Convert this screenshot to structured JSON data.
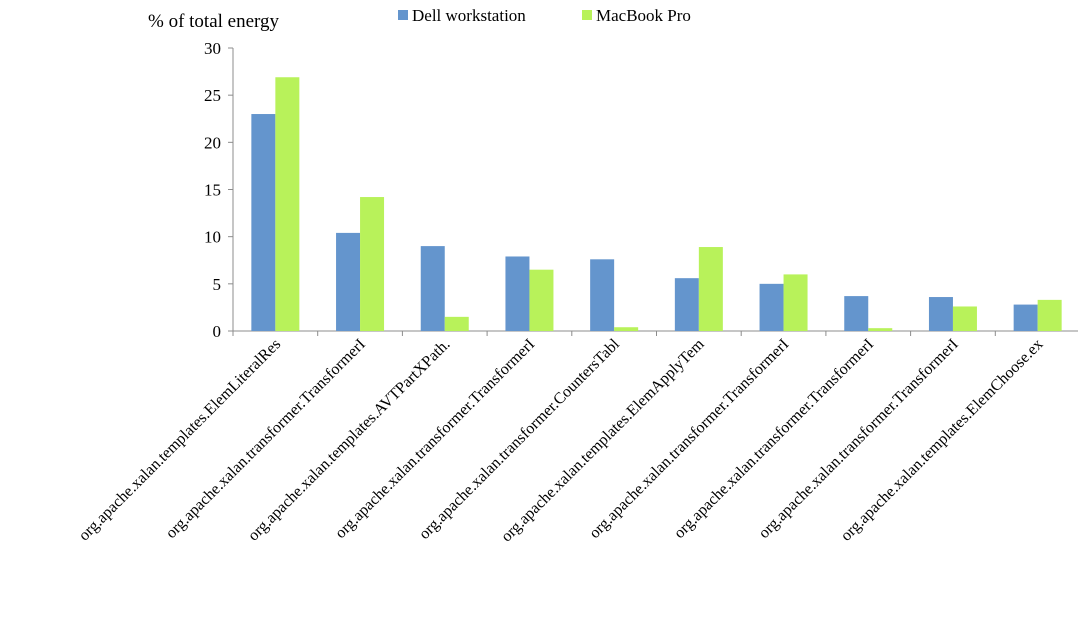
{
  "chart_data": {
    "type": "bar",
    "ylabel": "% of total energy",
    "ylim": [
      0,
      30
    ],
    "yticks": [
      0,
      5,
      10,
      15,
      20,
      25,
      30
    ],
    "grid": false,
    "legend_position": "top",
    "categories": [
      "org.apache.xalan.templates.ElemLiteralRes",
      "org.apache.xalan.transformer.TransformerI",
      "org.apache.xalan.templates.AVTPartXPath.",
      "org.apache.xalan.transformer.TransformerI",
      "org.apache.xalan.transformer.CountersTabl",
      "org.apache.xalan.templates.ElemApplyTem",
      "org.apache.xalan.transformer.TransformerI",
      "org.apache.xalan.transformer.TransformerI",
      "org.apache.xalan.transformer.TransformerI",
      "org.apache.xalan.templates.ElemChoose.ex"
    ],
    "series": [
      {
        "name": "Dell workstation",
        "color": "#6495cd",
        "values": [
          23.0,
          10.4,
          9.0,
          7.9,
          7.6,
          5.6,
          5.0,
          3.7,
          3.6,
          2.8
        ]
      },
      {
        "name": "MacBook Pro",
        "color": "#b8f25a",
        "values": [
          26.9,
          14.2,
          1.5,
          6.5,
          0.4,
          8.9,
          6.0,
          0.3,
          2.6,
          3.3
        ]
      }
    ]
  }
}
